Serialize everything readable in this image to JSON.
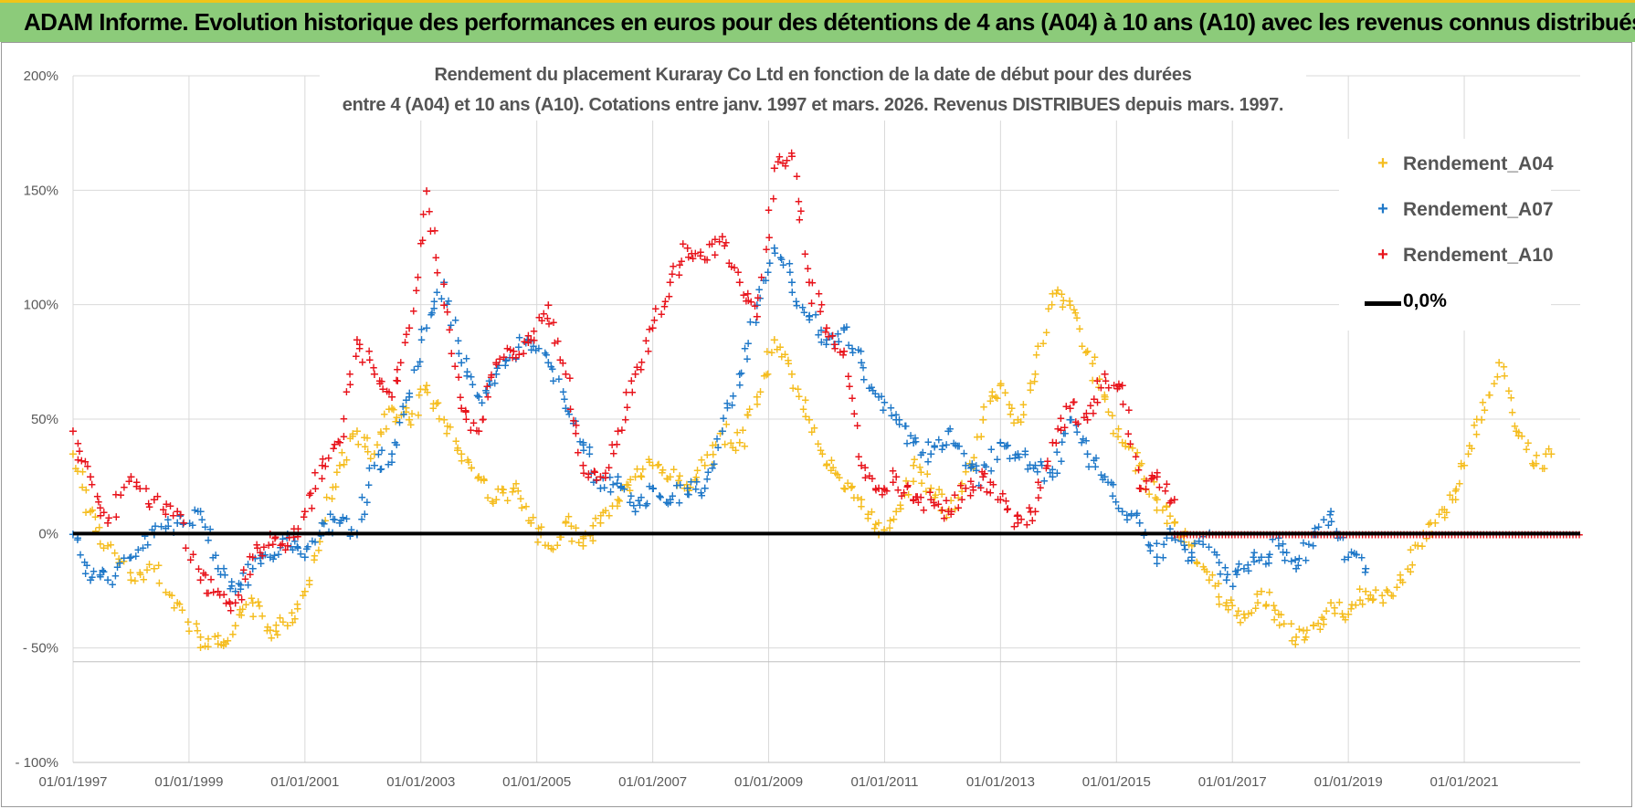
{
  "header": {
    "banner_text": "ADAM Informe. Evolution historique des performances en euros pour des détentions de 4 ans (A04) à 10 ans (A10) avec les revenus connus distribués"
  },
  "colors": {
    "banner": "#8ccb7a",
    "a04": "#f5bd1f",
    "a07": "#1f78c8",
    "a10": "#e8141c",
    "zero_line": "#000000"
  },
  "chart_data": {
    "type": "scatter",
    "title_line1": "Rendement du placement Kuraray Co Ltd en fonction de la date de début pour des durées",
    "title_line2": "entre 4 (A04) et 10 ans (A10).  Cotations entre janv. 1997 et mars. 2026. Revenus DISTRIBUES depuis mars. 1997.",
    "xlabel": "",
    "ylabel": "",
    "x_range_years": [
      1997.0,
      2023.0
    ],
    "x_tick_labels": [
      "01/01/1997",
      "01/01/1999",
      "01/01/2001",
      "01/01/2003",
      "01/01/2005",
      "01/01/2007",
      "01/01/2009",
      "01/01/2011",
      "01/01/2013",
      "01/01/2015",
      "01/01/2017",
      "01/01/2019",
      "01/01/2021"
    ],
    "x_tick_years": [
      1997,
      1999,
      2001,
      2003,
      2005,
      2007,
      2009,
      2011,
      2013,
      2015,
      2017,
      2019,
      2021
    ],
    "ylim": [
      -100,
      200
    ],
    "y_ticks": [
      200,
      150,
      100,
      50,
      0,
      -50,
      -100
    ],
    "y_tick_labels": [
      "200%",
      "150%",
      "100%",
      "50%",
      "0%",
      "- 50%",
      "- 100%"
    ],
    "grid": "horizontal and vertical",
    "legend_position": "right",
    "legend": {
      "a04": "Rendement_A04",
      "a07": "Rendement_A07",
      "a10": "Rendement_A10",
      "zero": "0,0%"
    },
    "series": [
      {
        "name": "Rendement_A04",
        "color_key": "a04",
        "x": [
          1997.0,
          1997.3,
          1997.6,
          1998.0,
          1998.4,
          1998.8,
          1999.2,
          1999.5,
          1999.8,
          2000.1,
          2000.4,
          2000.7,
          2001.0,
          2001.3,
          2001.6,
          2001.9,
          2002.2,
          2002.5,
          2002.8,
          2003.1,
          2003.4,
          2003.7,
          2004.0,
          2004.3,
          2004.6,
          2004.9,
          2005.2,
          2005.5,
          2005.8,
          2006.1,
          2006.4,
          2006.7,
          2007.0,
          2007.3,
          2007.6,
          2007.9,
          2008.2,
          2008.5,
          2008.8,
          2009.1,
          2009.4,
          2009.7,
          2010.0,
          2010.3,
          2010.6,
          2010.9,
          2011.2,
          2011.5,
          2011.8,
          2012.1,
          2012.4,
          2012.7,
          2013.0,
          2013.3,
          2013.6,
          2013.9,
          2014.2,
          2014.5,
          2014.8,
          2015.1,
          2015.4,
          2015.7,
          2016.0,
          2016.3,
          2016.6,
          2016.9,
          2017.2,
          2017.5,
          2017.8,
          2018.1,
          2018.4,
          2018.7,
          2019.0,
          2019.3,
          2019.6,
          2019.9,
          2020.2,
          2020.5,
          2020.8,
          2021.0,
          2021.3,
          2021.6,
          2021.9,
          2022.2,
          2022.5
        ],
        "y": [
          35,
          10,
          -5,
          -20,
          -15,
          -30,
          -45,
          -48,
          -40,
          -30,
          -42,
          -40,
          -25,
          5,
          30,
          45,
          35,
          55,
          50,
          65,
          50,
          35,
          25,
          15,
          20,
          5,
          -5,
          5,
          -5,
          5,
          15,
          25,
          30,
          25,
          20,
          30,
          45,
          40,
          60,
          85,
          70,
          50,
          30,
          20,
          15,
          0,
          10,
          30,
          20,
          10,
          20,
          50,
          65,
          50,
          70,
          105,
          100,
          80,
          60,
          40,
          30,
          15,
          5,
          -5,
          -20,
          -30,
          -35,
          -25,
          -35,
          -45,
          -40,
          -30,
          -35,
          -25,
          -30,
          -20,
          -5,
          5,
          15,
          30,
          50,
          75,
          45,
          30,
          35
        ]
      },
      {
        "name": "Rendement_A07",
        "color_key": "a07",
        "x": [
          1997.0,
          1997.3,
          1997.6,
          1998.0,
          1998.4,
          1998.8,
          1999.2,
          1999.5,
          1999.8,
          2000.1,
          2000.4,
          2000.7,
          2001.0,
          2001.3,
          2001.6,
          2001.9,
          2002.2,
          2002.5,
          2002.8,
          2003.1,
          2003.4,
          2003.7,
          2004.0,
          2004.3,
          2004.6,
          2004.9,
          2005.2,
          2005.5,
          2005.8,
          2006.1,
          2006.4,
          2006.7,
          2007.0,
          2007.3,
          2007.6,
          2007.9,
          2008.2,
          2008.5,
          2008.8,
          2009.1,
          2009.4,
          2009.7,
          2010.0,
          2010.3,
          2010.6,
          2010.9,
          2011.2,
          2011.5,
          2011.8,
          2012.1,
          2012.4,
          2012.7,
          2013.0,
          2013.3,
          2013.6,
          2013.9,
          2014.2,
          2014.5,
          2014.8,
          2015.1,
          2015.4,
          2015.7,
          2016.0,
          2016.3,
          2016.6,
          2016.9,
          2017.2,
          2017.5,
          2017.8,
          2018.1,
          2018.4,
          2018.7,
          2019.0,
          2019.3
        ],
        "y": [
          0,
          -20,
          -20,
          -10,
          0,
          5,
          10,
          -15,
          -25,
          -15,
          -10,
          0,
          -10,
          5,
          5,
          0,
          30,
          35,
          60,
          90,
          110,
          75,
          60,
          70,
          80,
          85,
          75,
          55,
          40,
          20,
          25,
          10,
          20,
          15,
          20,
          20,
          45,
          70,
          100,
          125,
          110,
          95,
          85,
          90,
          75,
          60,
          50,
          40,
          35,
          45,
          30,
          25,
          40,
          35,
          30,
          25,
          50,
          35,
          25,
          10,
          5,
          -10,
          0,
          -10,
          0,
          -20,
          -15,
          -10,
          -5,
          -15,
          0,
          10,
          -10,
          -15
        ]
      },
      {
        "name": "Rendement_A10",
        "color_key": "a10",
        "x": [
          1997.0,
          1997.3,
          1997.6,
          1998.0,
          1998.4,
          1998.8,
          1999.2,
          1999.5,
          1999.8,
          2000.1,
          2000.4,
          2000.7,
          2001.0,
          2001.3,
          2001.6,
          2001.9,
          2002.2,
          2002.5,
          2002.8,
          2003.1,
          2003.4,
          2003.7,
          2004.0,
          2004.3,
          2004.6,
          2004.9,
          2005.2,
          2005.5,
          2005.8,
          2006.1,
          2006.4,
          2006.7,
          2007.0,
          2007.3,
          2007.6,
          2007.9,
          2008.2,
          2008.5,
          2008.8,
          2009.1,
          2009.4,
          2009.7,
          2010.0,
          2010.3,
          2010.6,
          2010.9,
          2011.2,
          2011.5,
          2011.8,
          2012.1,
          2012.4,
          2012.7,
          2013.0,
          2013.3,
          2013.6,
          2013.9,
          2014.2,
          2014.5,
          2014.8,
          2015.1,
          2015.4,
          2015.7,
          2016.0
        ],
        "y": [
          45,
          25,
          5,
          25,
          15,
          10,
          -20,
          -25,
          -30,
          -10,
          0,
          -5,
          10,
          30,
          40,
          85,
          70,
          60,
          90,
          150,
          100,
          55,
          45,
          75,
          80,
          85,
          100,
          70,
          30,
          25,
          45,
          70,
          90,
          110,
          125,
          120,
          130,
          110,
          95,
          160,
          165,
          110,
          90,
          80,
          30,
          20,
          25,
          15,
          15,
          10,
          20,
          25,
          15,
          5,
          10,
          40,
          55,
          50,
          70,
          65,
          20,
          25,
          15
        ]
      },
      {
        "name": "0,0%",
        "color_key": "zero_line",
        "x": [
          1997.0,
          2023.0
        ],
        "y": [
          0,
          0
        ]
      }
    ]
  }
}
